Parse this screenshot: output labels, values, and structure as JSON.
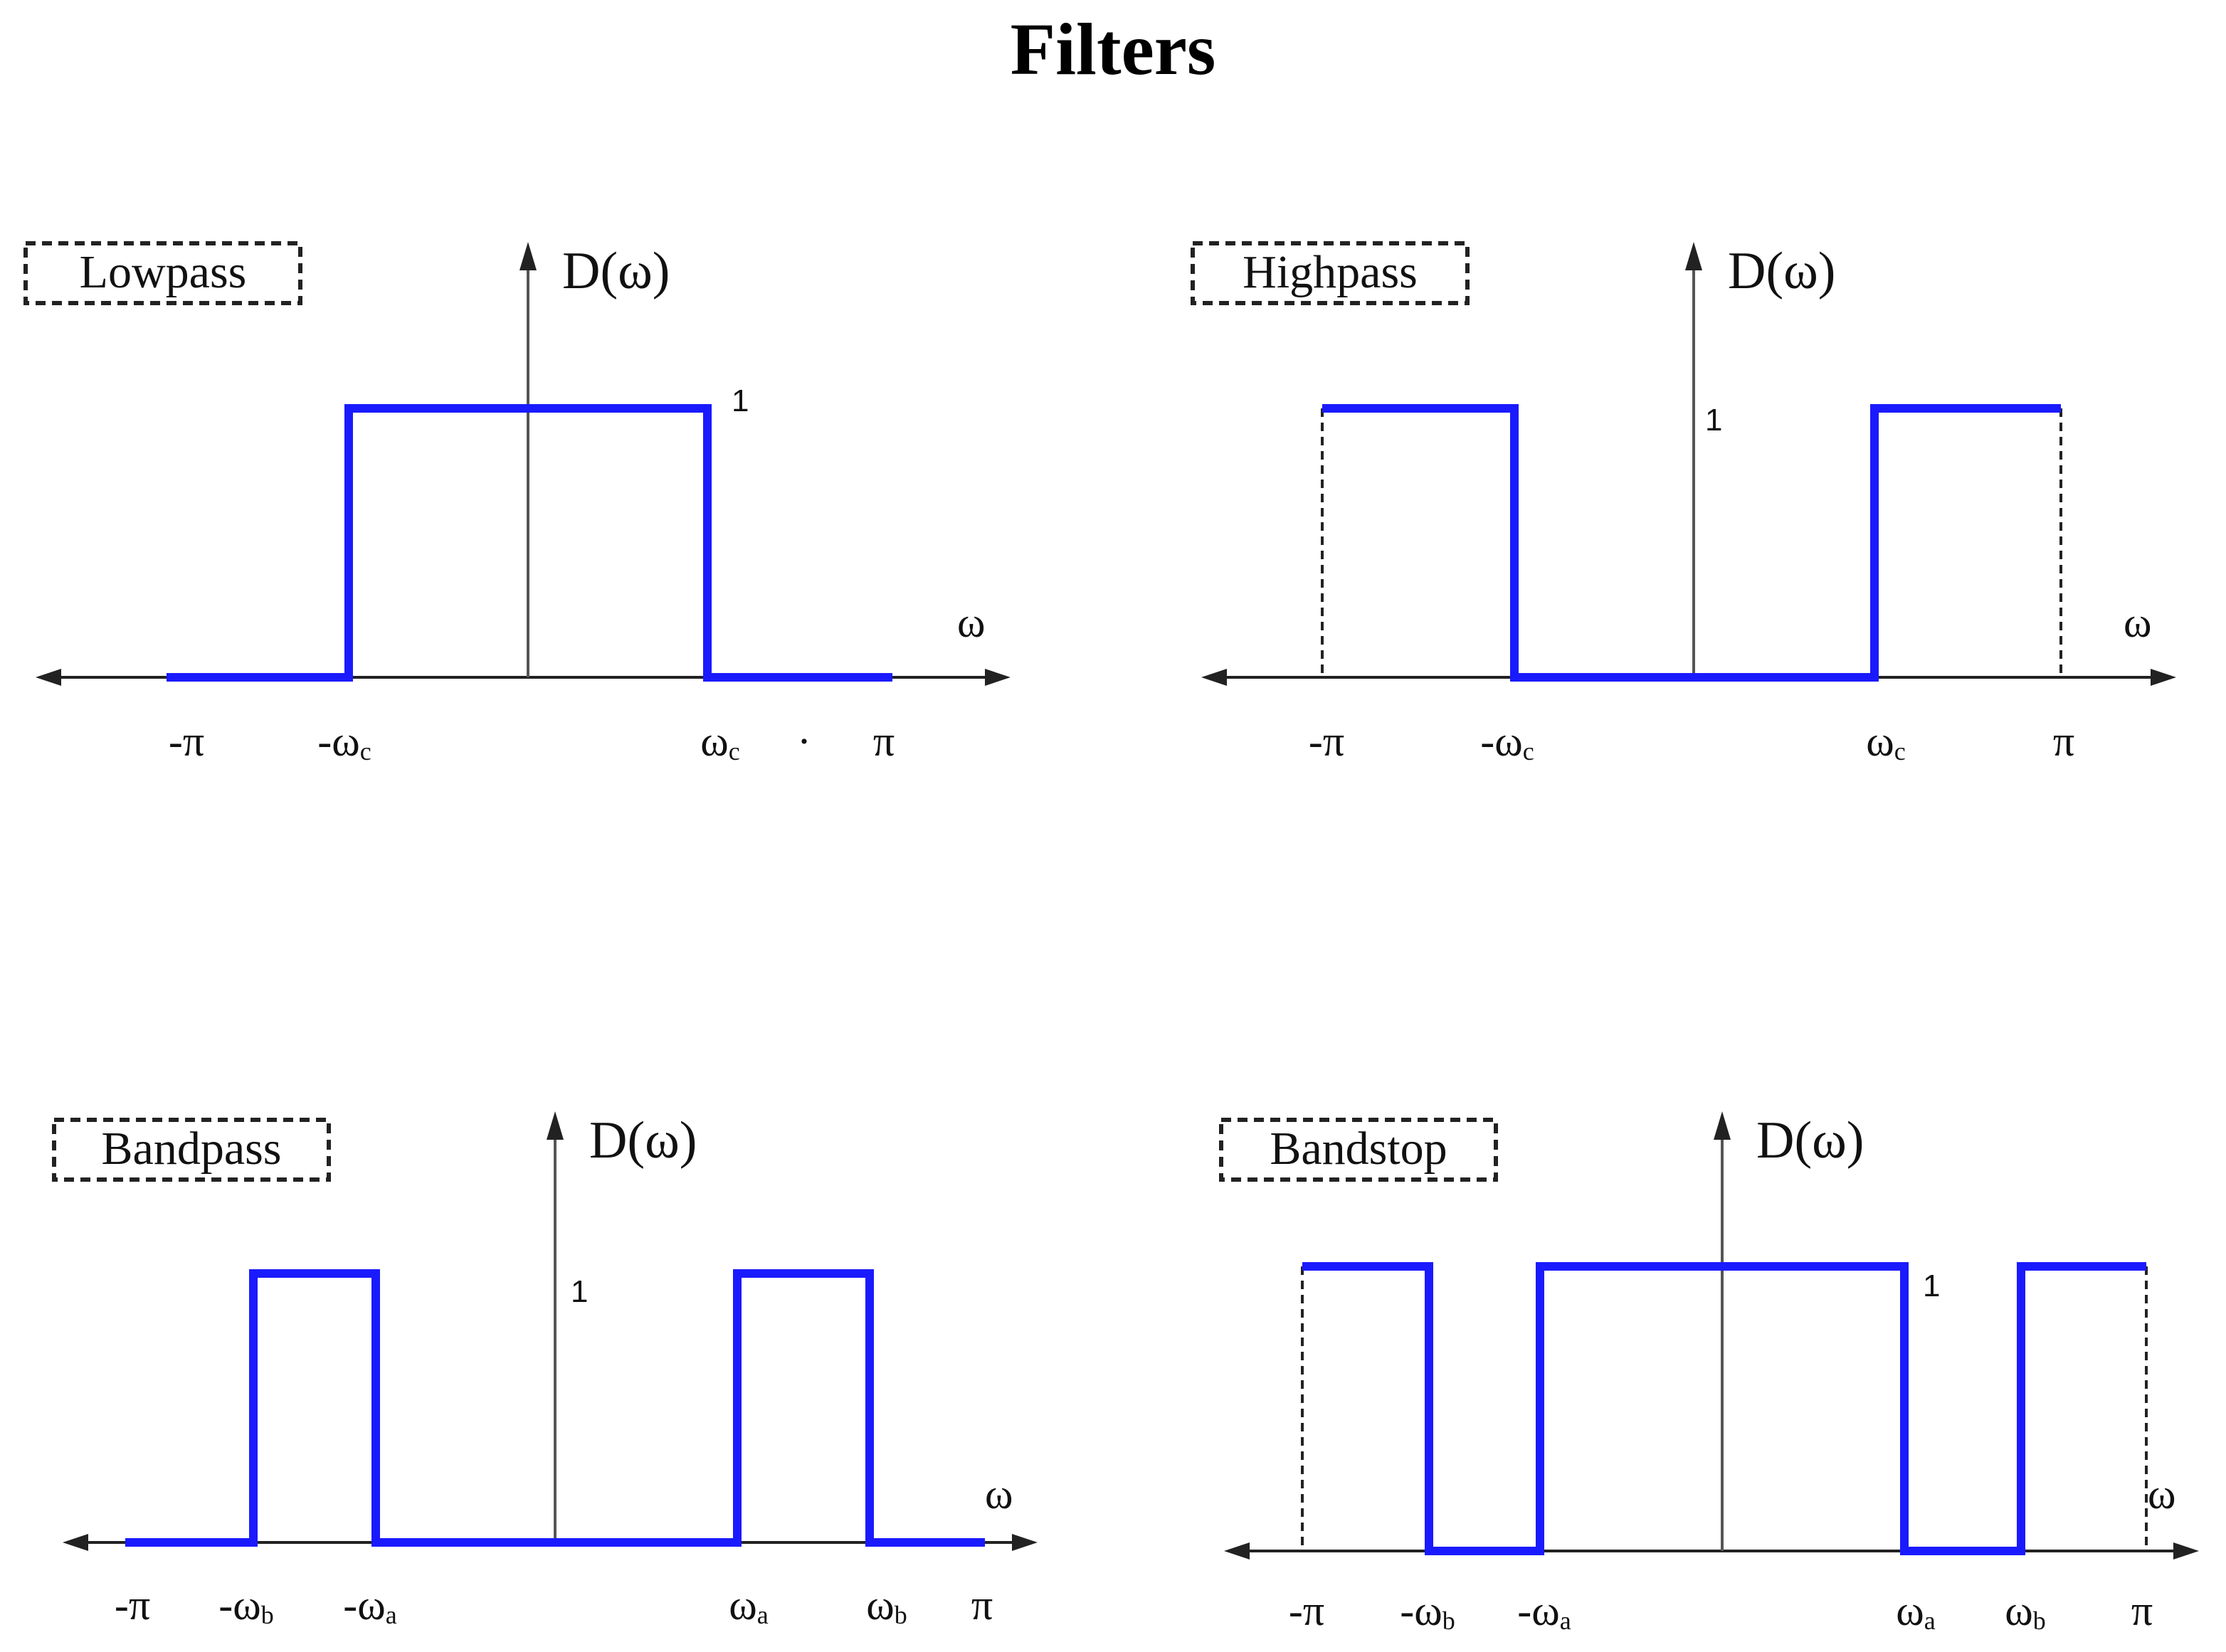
{
  "title": "Filters",
  "colors": {
    "response": "#1a1aff",
    "axis": "#555555",
    "text": "#111111"
  },
  "panels": [
    {
      "id": "lowpass",
      "label": "Lowpass",
      "y_axis_label": "D(ω)",
      "x_axis_label": "ω",
      "level_label": "1",
      "ticks": [
        "-π",
        "-ωc",
        "ωc",
        "·",
        "π"
      ],
      "response": [
        {
          "from": "-π",
          "to": "-ωc",
          "level": 0
        },
        {
          "from": "-ωc",
          "to": "ωc",
          "level": 1
        },
        {
          "from": "ωc",
          "to": "π",
          "level": 0
        }
      ]
    },
    {
      "id": "highpass",
      "label": "Highpass",
      "y_axis_label": "D(ω)",
      "x_axis_label": "ω",
      "level_label": "1",
      "ticks": [
        "-π",
        "-ωc",
        "ωc",
        "π"
      ],
      "response": [
        {
          "from": "-π",
          "to": "-ωc",
          "level": 1
        },
        {
          "from": "-ωc",
          "to": "ωc",
          "level": 0
        },
        {
          "from": "ωc",
          "to": "π",
          "level": 1
        }
      ]
    },
    {
      "id": "bandpass",
      "label": "Bandpass",
      "y_axis_label": "D(ω)",
      "x_axis_label": "ω",
      "level_label": "1",
      "ticks": [
        "-π",
        "-ωb",
        "-ωa",
        "ωa",
        "ωb",
        "π"
      ],
      "response": [
        {
          "from": "-π",
          "to": "-ωb",
          "level": 0
        },
        {
          "from": "-ωb",
          "to": "-ωa",
          "level": 1
        },
        {
          "from": "-ωa",
          "to": "ωa",
          "level": 0
        },
        {
          "from": "ωa",
          "to": "ωb",
          "level": 1
        },
        {
          "from": "ωb",
          "to": "π",
          "level": 0
        }
      ]
    },
    {
      "id": "bandstop",
      "label": "Bandstop",
      "y_axis_label": "D(ω)",
      "x_axis_label": "ω",
      "level_label": "1",
      "ticks": [
        "-π",
        "-ωb",
        "-ωa",
        "ωa",
        "ωb",
        "π"
      ],
      "response": [
        {
          "from": "-π",
          "to": "-ωb",
          "level": 1
        },
        {
          "from": "-ωb",
          "to": "-ωa",
          "level": 0
        },
        {
          "from": "-ωa",
          "to": "ωa",
          "level": 1
        },
        {
          "from": "ωa",
          "to": "ωb",
          "level": 0
        },
        {
          "from": "ωb",
          "to": "π",
          "level": 1
        }
      ]
    }
  ]
}
